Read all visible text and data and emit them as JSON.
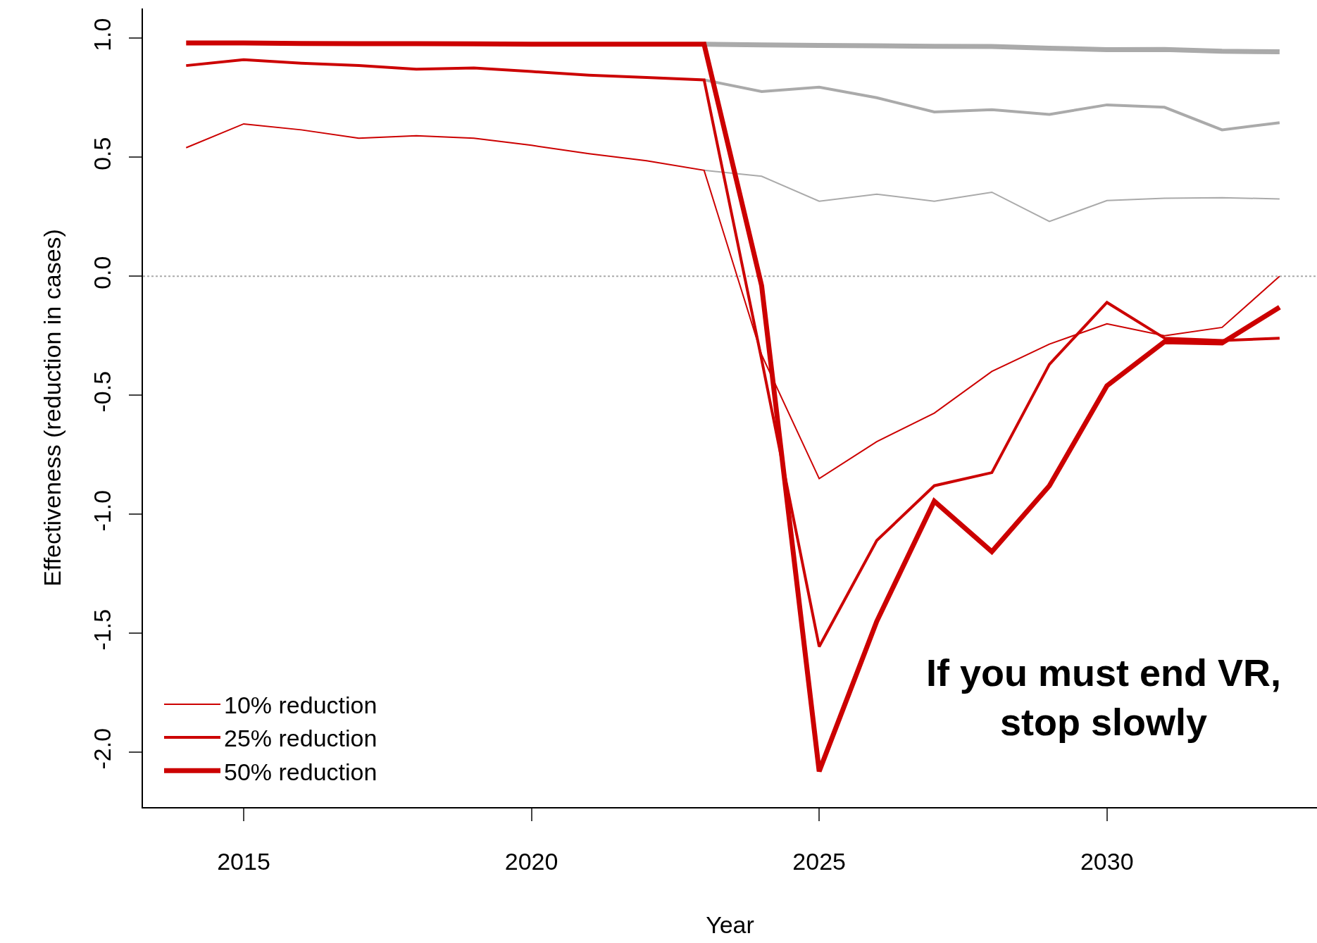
{
  "chart_data": {
    "type": "line",
    "xlabel": "Year",
    "ylabel": "Effectiveness (reduction in cases)",
    "x": [
      2014,
      2015,
      2016,
      2017,
      2018,
      2019,
      2020,
      2021,
      2022,
      2023,
      2024,
      2025,
      2026,
      2027,
      2028,
      2029,
      2030,
      2031,
      2032,
      2033
    ],
    "series": [
      {
        "color": "#aaaaaa",
        "x": [
          2023,
          2024,
          2025,
          2026,
          2027,
          2028,
          2029,
          2030,
          2031,
          2032,
          2033
        ],
        "values": [
          0.445,
          0.42,
          0.315,
          0.345,
          0.315,
          0.353,
          0.23,
          0.318,
          0.328,
          0.33,
          0.325
        ]
      },
      {
        "color": "#aaaaaa",
        "x": [
          2023,
          2024,
          2025,
          2026,
          2027,
          2028,
          2029,
          2030,
          2031,
          2032,
          2033
        ],
        "values": [
          0.825,
          0.776,
          0.794,
          0.75,
          0.69,
          0.7,
          0.68,
          0.72,
          0.71,
          0.615,
          0.645
        ]
      },
      {
        "color": "#aaaaaa",
        "x": [
          2023,
          2024,
          2025,
          2026,
          2027,
          2028,
          2029,
          2030,
          2031,
          2032,
          2033
        ],
        "values": [
          0.975,
          0.972,
          0.97,
          0.968,
          0.966,
          0.965,
          0.958,
          0.952,
          0.953,
          0.945,
          0.943
        ]
      },
      {
        "name": "10% reduction",
        "color": "#cc0000",
        "values": [
          0.54,
          0.64,
          0.615,
          0.58,
          0.59,
          0.58,
          0.55,
          0.515,
          0.485,
          0.445,
          -0.33,
          -0.85,
          -0.695,
          -0.575,
          -0.4,
          -0.285,
          -0.2,
          -0.25,
          -0.215,
          0.0
        ]
      },
      {
        "name": "25% reduction",
        "color": "#cc0000",
        "values": [
          0.885,
          0.91,
          0.895,
          0.885,
          0.87,
          0.875,
          0.86,
          0.845,
          0.835,
          0.825,
          -0.35,
          -1.556,
          -1.11,
          -0.88,
          -0.825,
          -0.37,
          -0.11,
          -0.26,
          -0.27,
          -0.26
        ]
      },
      {
        "name": "50% reduction",
        "color": "#cc0000",
        "values": [
          0.98,
          0.98,
          0.978,
          0.977,
          0.977,
          0.976,
          0.975,
          0.975,
          0.975,
          0.975,
          -0.04,
          -2.08,
          -1.45,
          -0.945,
          -1.157,
          -0.88,
          -0.46,
          -0.275,
          -0.28,
          -0.13
        ]
      }
    ],
    "xlim": [
      2013.25,
      2033.65
    ],
    "xticks": [
      2015,
      2020,
      2025,
      2030
    ],
    "ylim": [
      -2.23,
      1.125
    ],
    "yticks": [
      {
        "value": -2,
        "label": "-2.0"
      },
      {
        "value": -1.5,
        "label": "-1.5"
      },
      {
        "value": -1,
        "label": "-1.0"
      },
      {
        "value": -0.5,
        "label": "-0.5"
      },
      {
        "value": 0,
        "label": "0.0"
      },
      {
        "value": 0.5,
        "label": "0.5"
      },
      {
        "value": 1,
        "label": "1.0"
      }
    ],
    "ref_lines": [
      {
        "axis": "y",
        "value": 0,
        "color": "#aaaaaa",
        "line_style": "dotted"
      }
    ],
    "annotations": [
      "If you must end VR,\nstop slowly"
    ],
    "grid": false,
    "legend": "bottom left",
    "marker": "none",
    "line_style": "solid"
  }
}
